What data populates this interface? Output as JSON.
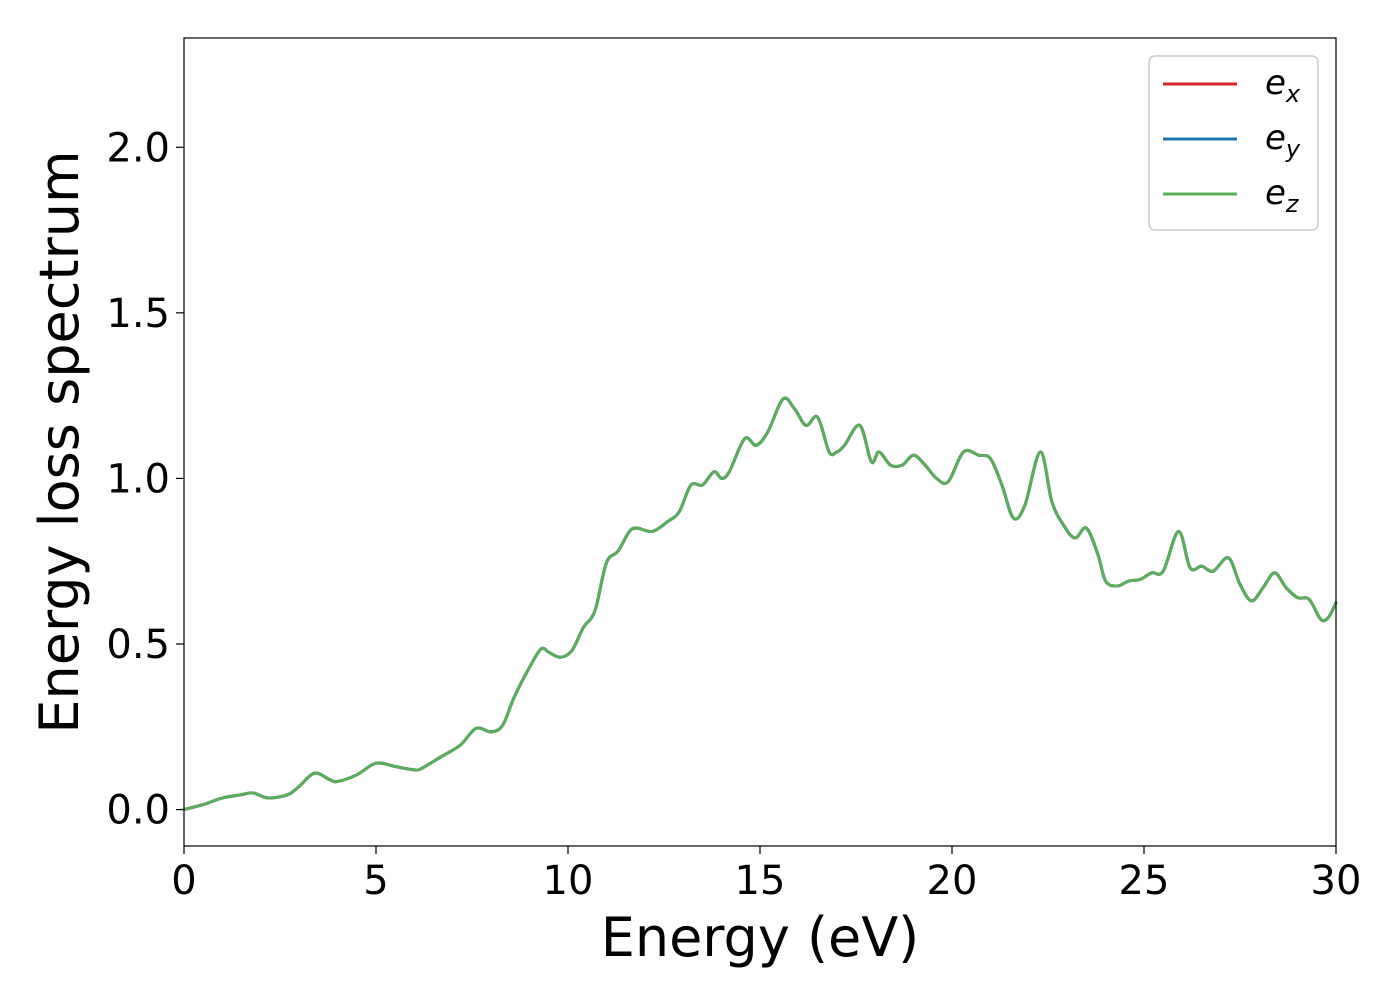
{
  "chart_data": {
    "type": "line",
    "title": "",
    "xlabel": "Energy (eV)",
    "ylabel": "Energy loss spectrum",
    "xlim": [
      0,
      30
    ],
    "ylim": [
      -0.11,
      2.33
    ],
    "x_ticks": [
      {
        "value": 0,
        "label": "0"
      },
      {
        "value": 5,
        "label": "5"
      },
      {
        "value": 10,
        "label": "10"
      },
      {
        "value": 15,
        "label": "15"
      },
      {
        "value": 20,
        "label": "20"
      },
      {
        "value": 25,
        "label": "25"
      },
      {
        "value": 30,
        "label": "30"
      }
    ],
    "y_ticks": [
      {
        "value": 0.0,
        "label": "0.0"
      },
      {
        "value": 0.5,
        "label": "0.5"
      },
      {
        "value": 1.0,
        "label": "1.0"
      },
      {
        "value": 1.5,
        "label": "1.5"
      },
      {
        "value": 2.0,
        "label": "2.0"
      }
    ],
    "grid": false,
    "legend_position": "top-right",
    "x": [
      0,
      0.5,
      1.0,
      1.5,
      1.8,
      2.2,
      2.7,
      3.0,
      3.4,
      3.8,
      4.0,
      4.5,
      5.0,
      5.5,
      6.0,
      6.2,
      6.7,
      7.2,
      7.6,
      8.0,
      8.3,
      8.6,
      9.0,
      9.3,
      9.5,
      9.8,
      10.1,
      10.4,
      10.7,
      11.0,
      11.3,
      11.6,
      11.8,
      12.2,
      12.6,
      12.9,
      13.2,
      13.5,
      13.8,
      14.0,
      14.2,
      14.6,
      14.9,
      15.2,
      15.6,
      15.9,
      16.2,
      16.5,
      16.8,
      17.0,
      17.2,
      17.6,
      17.9,
      18.1,
      18.4,
      18.7,
      19.0,
      19.3,
      19.6,
      19.9,
      20.3,
      20.7,
      21.0,
      21.3,
      21.6,
      21.9,
      22.3,
      22.6,
      22.9,
      23.2,
      23.5,
      23.8,
      24.0,
      24.3,
      24.6,
      24.9,
      25.2,
      25.5,
      25.9,
      26.2,
      26.5,
      26.8,
      27.2,
      27.5,
      27.8,
      28.1,
      28.4,
      28.7,
      29.0,
      29.3,
      29.6,
      29.8,
      30.0
    ],
    "series": [
      {
        "name": "e_x",
        "color": "#d62728",
        "values": [
          0.0,
          0.015,
          0.035,
          0.045,
          0.05,
          0.035,
          0.045,
          0.07,
          0.11,
          0.09,
          0.085,
          0.105,
          0.14,
          0.13,
          0.12,
          0.125,
          0.16,
          0.195,
          0.245,
          0.235,
          0.255,
          0.34,
          0.43,
          0.485,
          0.475,
          0.46,
          0.48,
          0.55,
          0.6,
          0.745,
          0.78,
          0.84,
          0.85,
          0.84,
          0.87,
          0.9,
          0.98,
          0.98,
          1.02,
          1.0,
          1.02,
          1.12,
          1.1,
          1.14,
          1.24,
          1.21,
          1.16,
          1.185,
          1.08,
          1.08,
          1.1,
          1.16,
          1.05,
          1.08,
          1.04,
          1.04,
          1.07,
          1.04,
          1.0,
          0.99,
          1.08,
          1.07,
          1.06,
          0.98,
          0.88,
          0.92,
          1.08,
          0.93,
          0.86,
          0.82,
          0.85,
          0.77,
          0.69,
          0.675,
          0.69,
          0.695,
          0.715,
          0.72,
          0.84,
          0.73,
          0.735,
          0.72,
          0.76,
          0.68,
          0.63,
          0.67,
          0.715,
          0.67,
          0.64,
          0.635,
          0.575,
          0.58,
          0.625
        ]
      },
      {
        "name": "e_y",
        "color": "#1f77b4",
        "values": [
          0.0,
          0.015,
          0.035,
          0.045,
          0.05,
          0.035,
          0.045,
          0.07,
          0.11,
          0.09,
          0.085,
          0.105,
          0.14,
          0.13,
          0.12,
          0.125,
          0.16,
          0.195,
          0.245,
          0.235,
          0.255,
          0.34,
          0.43,
          0.485,
          0.475,
          0.46,
          0.48,
          0.55,
          0.6,
          0.745,
          0.78,
          0.84,
          0.85,
          0.84,
          0.87,
          0.9,
          0.98,
          0.98,
          1.02,
          1.0,
          1.02,
          1.12,
          1.1,
          1.14,
          1.24,
          1.21,
          1.16,
          1.185,
          1.08,
          1.08,
          1.1,
          1.16,
          1.05,
          1.08,
          1.04,
          1.04,
          1.07,
          1.04,
          1.0,
          0.99,
          1.08,
          1.07,
          1.06,
          0.98,
          0.88,
          0.92,
          1.08,
          0.93,
          0.86,
          0.82,
          0.85,
          0.77,
          0.69,
          0.675,
          0.69,
          0.695,
          0.715,
          0.72,
          0.84,
          0.73,
          0.735,
          0.72,
          0.76,
          0.68,
          0.63,
          0.67,
          0.715,
          0.67,
          0.64,
          0.635,
          0.575,
          0.58,
          0.625
        ]
      },
      {
        "name": "e_z",
        "color": "#5aad5a",
        "values": [
          0.0,
          0.015,
          0.035,
          0.045,
          0.05,
          0.035,
          0.045,
          0.07,
          0.11,
          0.09,
          0.085,
          0.105,
          0.14,
          0.13,
          0.12,
          0.125,
          0.16,
          0.195,
          0.245,
          0.235,
          0.255,
          0.34,
          0.43,
          0.485,
          0.475,
          0.46,
          0.48,
          0.55,
          0.6,
          0.745,
          0.78,
          0.84,
          0.85,
          0.84,
          0.87,
          0.9,
          0.98,
          0.98,
          1.02,
          1.0,
          1.02,
          1.12,
          1.1,
          1.14,
          1.24,
          1.21,
          1.16,
          1.185,
          1.08,
          1.08,
          1.1,
          1.16,
          1.05,
          1.08,
          1.04,
          1.04,
          1.07,
          1.04,
          1.0,
          0.99,
          1.08,
          1.07,
          1.06,
          0.98,
          0.88,
          0.92,
          1.08,
          0.93,
          0.86,
          0.82,
          0.85,
          0.77,
          0.69,
          0.675,
          0.69,
          0.695,
          0.715,
          0.72,
          0.84,
          0.73,
          0.735,
          0.72,
          0.76,
          0.68,
          0.63,
          0.67,
          0.715,
          0.67,
          0.64,
          0.635,
          0.575,
          0.58,
          0.625
        ]
      }
    ],
    "legend": [
      {
        "base": "e",
        "sub": "x",
        "color": "#d62728"
      },
      {
        "base": "e",
        "sub": "y",
        "color": "#1f77b4"
      },
      {
        "base": "e",
        "sub": "z",
        "color": "#5aad5a"
      }
    ]
  }
}
